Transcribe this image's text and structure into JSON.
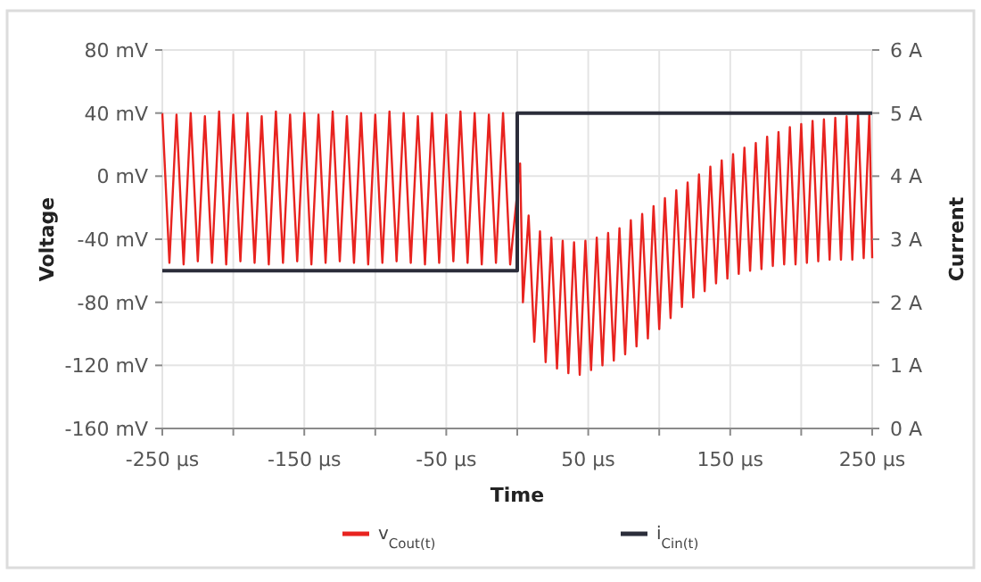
{
  "chart_data": {
    "type": "line",
    "xlabel": "Time",
    "ylabel": "Voltage",
    "y2label": "Current",
    "xlim": [
      -250,
      250
    ],
    "xticks": [
      {
        "value": -250,
        "label": "-250 µs"
      },
      {
        "value": -200,
        "label": null
      },
      {
        "value": -150,
        "label": "-150 µs"
      },
      {
        "value": -100,
        "label": null
      },
      {
        "value": -50,
        "label": "-50 µs"
      },
      {
        "value": 0,
        "label": null
      },
      {
        "value": 50,
        "label": "50 µs"
      },
      {
        "value": 100,
        "label": null
      },
      {
        "value": 150,
        "label": "150 µs"
      },
      {
        "value": 200,
        "label": null
      },
      {
        "value": 250,
        "label": "250 µs"
      }
    ],
    "ylim": [
      -160,
      80
    ],
    "yticks": [
      {
        "value": -160,
        "label": "-160 mV"
      },
      {
        "value": -120,
        "label": "-120 mV"
      },
      {
        "value": -80,
        "label": "-80 mV"
      },
      {
        "value": -40,
        "label": "-40 mV"
      },
      {
        "value": 0,
        "label": "0 mV"
      },
      {
        "value": 40,
        "label": "40 mV"
      },
      {
        "value": 80,
        "label": "80 mV"
      }
    ],
    "y2lim": [
      0,
      6
    ],
    "y2ticks": [
      {
        "value": 0,
        "label": "0 A"
      },
      {
        "value": 1,
        "label": "1 A"
      },
      {
        "value": 2,
        "label": "2 A"
      },
      {
        "value": 3,
        "label": "3 A"
      },
      {
        "value": 4,
        "label": "4 A"
      },
      {
        "value": 5,
        "label": "5 A"
      },
      {
        "value": 6,
        "label": "6 A"
      }
    ],
    "grid": true,
    "legend": "bottom",
    "series": [
      {
        "name": "v$_{Cout(t)}$",
        "color": "#e8231f",
        "x": [
          -250,
          -245,
          -240,
          -235,
          -230,
          -225,
          -220,
          -215,
          -210,
          -205,
          -200,
          -195,
          -190,
          -185,
          -180,
          -175,
          -170,
          -165,
          -160,
          -155,
          -150,
          -145,
          -140,
          -135,
          -130,
          -125,
          -120,
          -115,
          -110,
          -105,
          -100,
          -95,
          -90,
          -85,
          -80,
          -75,
          -70,
          -65,
          -60,
          -55,
          -50,
          -45,
          -40,
          -35,
          -30,
          -25,
          -20,
          -15,
          -10,
          -5,
          2,
          4,
          8,
          12,
          16,
          20,
          24,
          28,
          32,
          36,
          40,
          44,
          48,
          52,
          56,
          60,
          64,
          68,
          72,
          76,
          80,
          84,
          88,
          92,
          96,
          100,
          104,
          108,
          112,
          116,
          120,
          124,
          128,
          132,
          136,
          140,
          144,
          148,
          152,
          156,
          160,
          164,
          168,
          172,
          176,
          180,
          184,
          188,
          192,
          196,
          200,
          204,
          208,
          212,
          216,
          220,
          224,
          228,
          232,
          236,
          240,
          244,
          248,
          250
        ],
        "values": [
          40,
          -55,
          39,
          -56,
          40,
          -54,
          38,
          -55,
          41,
          -56,
          39,
          -54,
          40,
          -55,
          38,
          -56,
          41,
          -55,
          39,
          -54,
          40,
          -56,
          39,
          -55,
          41,
          -54,
          38,
          -55,
          40,
          -56,
          39,
          -55,
          41,
          -54,
          40,
          -55,
          38,
          -56,
          40,
          -55,
          39,
          -54,
          41,
          -55,
          40,
          -56,
          39,
          -55,
          40,
          -56,
          8,
          -80,
          -25,
          -105,
          -35,
          -118,
          -39,
          -122,
          -41,
          -125,
          -42,
          -126,
          -41,
          -123,
          -39,
          -120,
          -36,
          -117,
          -33,
          -113,
          -28,
          -108,
          -24,
          -103,
          -19,
          -97,
          -14,
          -90,
          -9,
          -83,
          -4,
          -77,
          1,
          -73,
          6,
          -68,
          10,
          -65,
          14,
          -62,
          18,
          -60,
          21,
          -59,
          25,
          -57,
          28,
          -56,
          31,
          -56,
          33,
          -55,
          35,
          -54,
          36,
          -53,
          37,
          -53,
          38,
          -53,
          39,
          -52,
          40,
          -52
        ]
      },
      {
        "name": "i$_{Cin(t)}$",
        "type": "step",
        "axis": "y2",
        "color": "#2b2d3a",
        "x": [
          -250,
          0,
          250
        ],
        "values": [
          2.5,
          5,
          5
        ]
      }
    ]
  }
}
